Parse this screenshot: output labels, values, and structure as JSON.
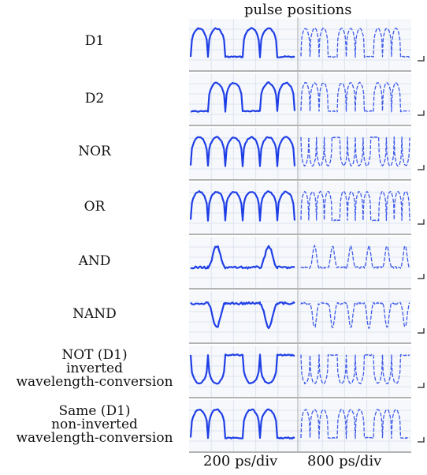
{
  "chart_data": {
    "type": "line",
    "title": "pulse positions",
    "x_labels": [
      "200 ps/div",
      "800 ps/div"
    ],
    "grid": true,
    "trace_color": "#1f3fe6",
    "panel_color": "#f6f8fc",
    "signals": [
      {
        "name": "D1",
        "label_lines": [
          "D1"
        ],
        "left_pattern": [
          1,
          1,
          0,
          1,
          1,
          0
        ],
        "left_kind": "pulse",
        "right_pattern": [
          1,
          1,
          1,
          0,
          1,
          1,
          1,
          0,
          1,
          1,
          1,
          0
        ],
        "right_kind": "pulse"
      },
      {
        "name": "D2",
        "label_lines": [
          "D2"
        ],
        "left_pattern": [
          0,
          1,
          1,
          0,
          1,
          1
        ],
        "left_kind": "pulse",
        "right_pattern": [
          1,
          1,
          1,
          0,
          1,
          1,
          1,
          0,
          1,
          1,
          1,
          0
        ],
        "right_kind": "pulse"
      },
      {
        "name": "NOR",
        "label_lines": [
          "NOR"
        ],
        "left_pattern": [
          1,
          1,
          1,
          1,
          1,
          1
        ],
        "left_kind": "pulse",
        "right_pattern": [
          1,
          1,
          1,
          1,
          0,
          1,
          1,
          1,
          1,
          0,
          1,
          1,
          1,
          1
        ],
        "right_kind": "inverted"
      },
      {
        "name": "OR",
        "label_lines": [
          "OR"
        ],
        "left_pattern": [
          1,
          1,
          1,
          1,
          1,
          1
        ],
        "left_kind": "pulse",
        "right_pattern": [
          1,
          1,
          1,
          1,
          0,
          1,
          1,
          1,
          1,
          0,
          1,
          1,
          1,
          1
        ],
        "right_kind": "pulse"
      },
      {
        "name": "AND",
        "label_lines": [
          "AND"
        ],
        "left_pattern": [
          0,
          1,
          0,
          0,
          1,
          0
        ],
        "left_kind": "spike",
        "right_pattern": [
          0,
          1,
          0,
          1,
          0,
          1,
          0,
          1,
          0,
          1,
          0,
          1
        ],
        "right_kind": "spike"
      },
      {
        "name": "NAND",
        "label_lines": [
          "NAND"
        ],
        "left_pattern": [
          0,
          1,
          0,
          0,
          1,
          0
        ],
        "left_kind": "dip",
        "right_pattern": [
          0,
          1,
          0,
          1,
          0,
          1,
          0,
          1,
          0,
          1,
          0,
          1
        ],
        "right_kind": "dip"
      },
      {
        "name": "NOT (D1)",
        "label_lines": [
          "NOT (D1)",
          "inverted",
          "wavelength-conversion"
        ],
        "left_pattern": [
          1,
          1,
          0,
          1,
          1,
          0
        ],
        "left_kind": "inverted",
        "right_pattern": [
          1,
          1,
          1,
          0,
          1,
          1,
          1,
          0,
          1,
          1,
          1,
          0
        ],
        "right_kind": "inverted"
      },
      {
        "name": "Same (D1)",
        "label_lines": [
          "Same (D1)",
          "non-inverted",
          "wavelength-conversion"
        ],
        "left_pattern": [
          1,
          1,
          0,
          1,
          1,
          0
        ],
        "left_kind": "pulse",
        "right_pattern": [
          1,
          1,
          1,
          0,
          1,
          1,
          1,
          0,
          1,
          1,
          1,
          0
        ],
        "right_kind": "pulse"
      }
    ]
  }
}
